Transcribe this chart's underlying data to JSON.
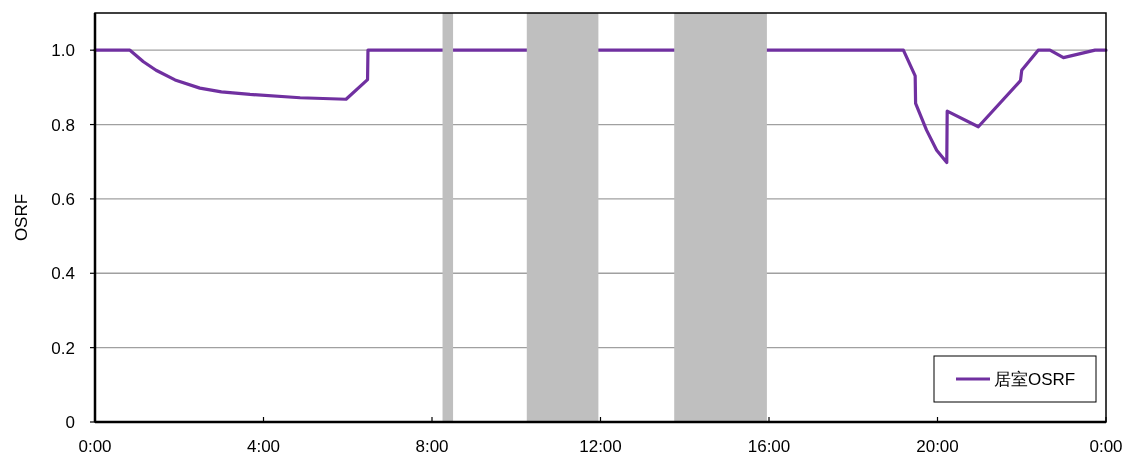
{
  "chart_data": {
    "type": "line",
    "ylabel": "OSRF",
    "x": [
      0,
      0.83,
      1.15,
      1.45,
      1.9,
      2.49,
      3.0,
      3.68,
      4.87,
      5.96,
      6.47,
      6.48,
      19.19,
      19.47,
      19.48,
      19.74,
      19.98,
      20.22,
      20.23,
      20.97,
      21.97,
      22.0,
      22.39,
      22.67,
      22.99,
      23.74,
      24
    ],
    "series": [
      {
        "name": "居室OSRF",
        "color": "#7030a0",
        "values": [
          1.0,
          1.0,
          0.969,
          0.946,
          0.92,
          0.898,
          0.888,
          0.881,
          0.872,
          0.868,
          0.921,
          1.0,
          1.0,
          0.931,
          0.857,
          0.785,
          0.731,
          0.698,
          0.836,
          0.794,
          0.918,
          0.946,
          1.0,
          1.0,
          0.98,
          1.0,
          1.0
        ]
      }
    ],
    "xlim": [
      0,
      24
    ],
    "xticks": [
      {
        "value": 0,
        "label": "0:00"
      },
      {
        "value": 4,
        "label": "4:00"
      },
      {
        "value": 8,
        "label": "8:00"
      },
      {
        "value": 12,
        "label": "12:00"
      },
      {
        "value": 16,
        "label": "16:00"
      },
      {
        "value": 20,
        "label": "20:00"
      },
      {
        "value": 24,
        "label": "0:00"
      }
    ],
    "ylim": [
      0,
      1.1
    ],
    "yticks": [
      {
        "value": 0,
        "label": "0"
      },
      {
        "value": 0.2,
        "label": "0.2"
      },
      {
        "value": 0.4,
        "label": "0.4"
      },
      {
        "value": 0.6,
        "label": "0.6"
      },
      {
        "value": 0.8,
        "label": "0.8"
      },
      {
        "value": 1.0,
        "label": "1.0"
      }
    ],
    "bands": [
      {
        "axis": "x",
        "from": 8.25,
        "to": 8.5,
        "color": "#bfbfbf"
      },
      {
        "axis": "x",
        "from": 10.25,
        "to": 11.95,
        "color": "#bfbfbf"
      },
      {
        "axis": "x",
        "from": 13.75,
        "to": 15.95,
        "color": "#bfbfbf"
      }
    ],
    "grid": "y",
    "legend": "bottom right",
    "marker": "none",
    "line_style": "solid"
  }
}
